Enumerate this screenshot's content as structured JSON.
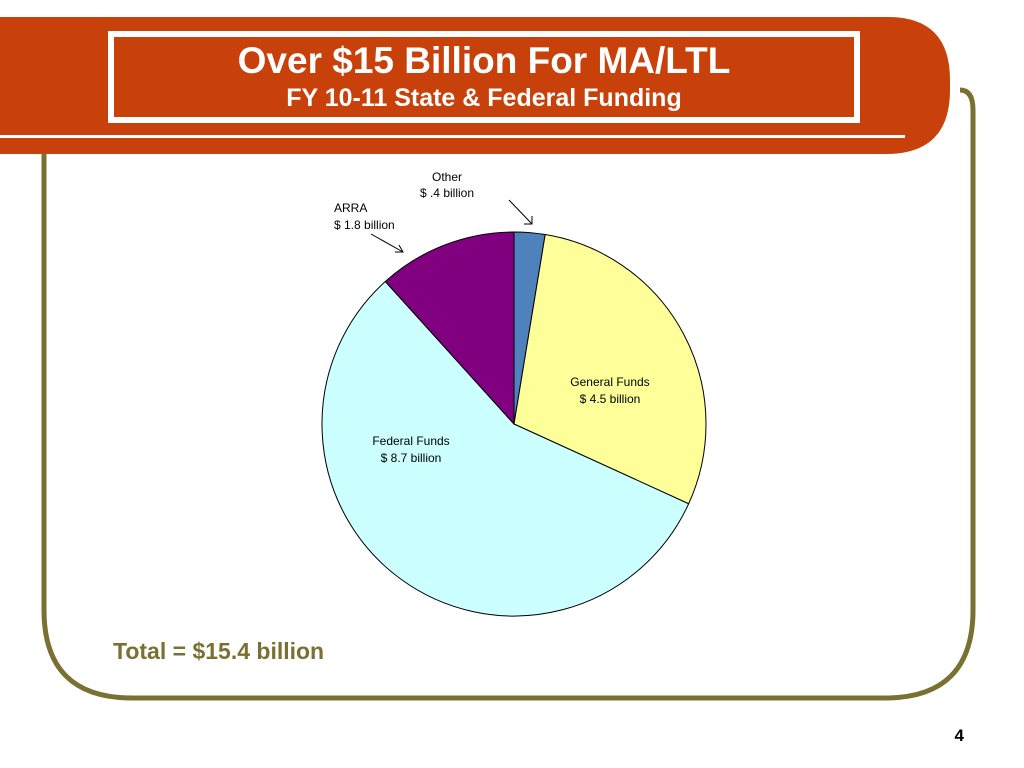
{
  "slide": {
    "title": "Over $15 Billion For MA/LTL",
    "subtitle": "FY 10-11 State & Federal Funding",
    "total": "Total = $15.4 billion",
    "page_number": "4"
  },
  "colors": {
    "header_bg": "#c8410a",
    "frame": "#7a7032",
    "total_text": "#7a7032"
  },
  "chart_data": {
    "type": "pie",
    "unit": "billion",
    "slices": [
      {
        "label": "Other",
        "value_label": "$ .4  billion",
        "value": 0.4,
        "color": "#4f81bd"
      },
      {
        "label": "General Funds",
        "value_label": "$ 4.5 billion",
        "value": 4.5,
        "color": "#ffff99"
      },
      {
        "label": "Federal Funds",
        "value_label": "$ 8.7 billion",
        "value": 8.7,
        "color": "#ccffff"
      },
      {
        "label": "ARRA",
        "value_label": "$ 1.8 billion",
        "value": 1.8,
        "color": "#800080"
      }
    ]
  }
}
